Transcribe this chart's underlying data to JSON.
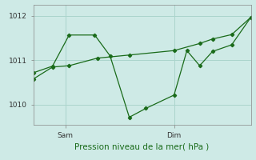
{
  "xlabel": "Pression niveau de la mer( hPa )",
  "background_color": "#ceeae6",
  "line_color": "#1a6b1a",
  "grid_color": "#aad4cc",
  "ylim": [
    1009.55,
    1012.25
  ],
  "xlim": [
    0,
    17
  ],
  "yticks": [
    1010,
    1011,
    1012
  ],
  "ytick_labels": [
    "1010",
    "1011",
    "1012"
  ],
  "xtick_positions": [
    2.5,
    11.0
  ],
  "xtick_labels": [
    "Sam",
    "Dim"
  ],
  "series1_x": [
    0.0,
    1.5,
    2.8,
    4.8,
    6.0,
    7.5,
    8.8,
    11.0,
    12.0,
    13.0,
    14.0,
    15.5,
    17.0
  ],
  "series1_y": [
    1010.72,
    1010.87,
    1011.57,
    1011.57,
    1011.1,
    1009.72,
    1009.92,
    1010.22,
    1011.22,
    1010.88,
    1011.2,
    1011.35,
    1011.97
  ],
  "series2_x": [
    0.0,
    1.5,
    2.8,
    5.0,
    7.5,
    11.0,
    13.0,
    14.0,
    15.5,
    17.0
  ],
  "series2_y": [
    1010.58,
    1010.85,
    1010.88,
    1011.05,
    1011.12,
    1011.22,
    1011.38,
    1011.48,
    1011.58,
    1011.97
  ]
}
